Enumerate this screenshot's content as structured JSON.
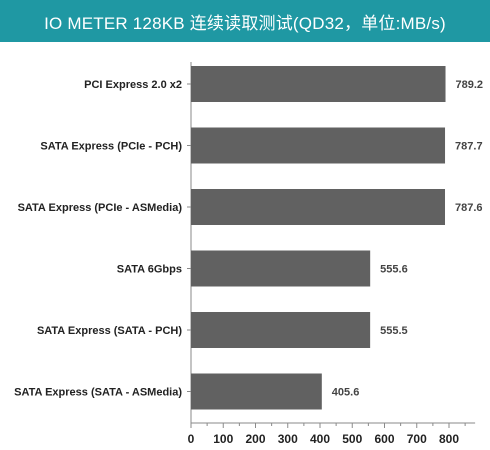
{
  "title": "IO METER 128KB 连续读取测试(QD32，单位:MB/s)",
  "colors": {
    "title_bg": "#1f98a3",
    "bar": "#616161",
    "axis": "#8a8a8a"
  },
  "chart_data": {
    "type": "bar",
    "orientation": "horizontal",
    "title": "IO METER 128KB 连续读取测试(QD32，单位:MB/s)",
    "categories": [
      "PCI Express 2.0 x2",
      "SATA Express (PCIe - PCH)",
      "SATA Express (PCIe - ASMedia)",
      "SATA 6Gbps",
      "SATA Express (SATA - PCH)",
      "SATA Express (SATA - ASMedia)"
    ],
    "values": [
      789.2,
      787.7,
      787.6,
      555.6,
      555.5,
      405.6
    ],
    "value_labels": [
      "789.2",
      "787.7",
      "787.6",
      "555.6",
      "555.5",
      "405.6"
    ],
    "xlim": [
      0,
      850
    ],
    "ticks": [
      "0",
      "100",
      "200",
      "300",
      "400",
      "500",
      "600",
      "700",
      "800"
    ],
    "grid": false,
    "legend": "none"
  }
}
